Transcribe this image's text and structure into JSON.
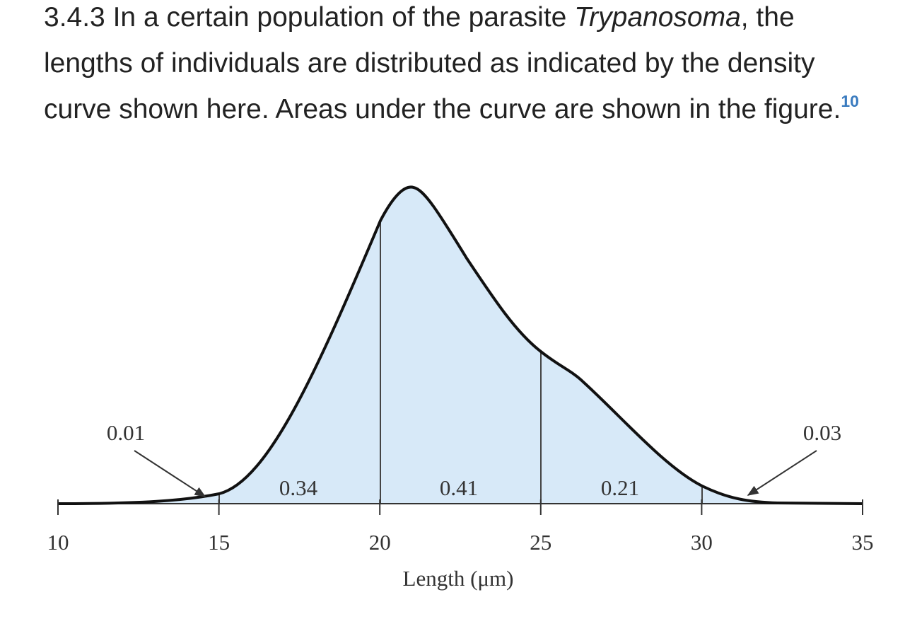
{
  "problem": {
    "number": "3.4.3",
    "text_before": "In a certain population of the parasite",
    "italic": "Trypanosoma",
    "text_after": ", the lengths of individuals are distributed as indicated by the density curve shown here. Areas under the curve are shown in the figure.",
    "footnote": "10"
  },
  "figure": {
    "x_label": "Length (μm)",
    "xlim": [
      10,
      35
    ],
    "xticks": [
      10,
      15,
      20,
      25,
      30,
      35
    ],
    "areas": [
      0.01,
      0.34,
      0.41,
      0.21,
      0.03
    ]
  }
}
